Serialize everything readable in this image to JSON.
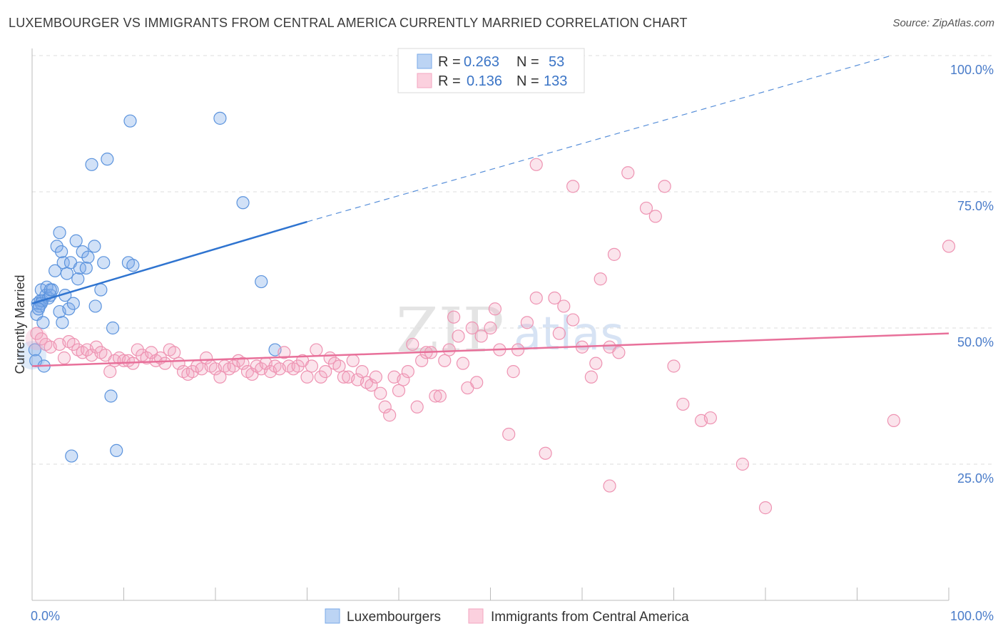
{
  "header": {
    "title": "LUXEMBOURGER VS IMMIGRANTS FROM CENTRAL AMERICA CURRENTLY MARRIED CORRELATION CHART",
    "source": "Source: ZipAtlas.com"
  },
  "watermark": {
    "zip": "ZIP",
    "atlas": "atlas"
  },
  "legend": {
    "rows": [
      {
        "r_label": "R =",
        "r_value": "0.263",
        "n_label": "N =",
        "n_value": "53"
      },
      {
        "r_label": "R =",
        "r_value": "0.136",
        "n_label": "N =",
        "n_value": "133"
      }
    ]
  },
  "bottom_legend": [
    "Luxembourgers",
    "Immigrants from Central America"
  ],
  "chart_data": {
    "type": "scatter",
    "title": "LUXEMBOURGER VS IMMIGRANTS FROM CENTRAL AMERICA CURRENTLY MARRIED CORRELATION CHART",
    "xlabel": "",
    "ylabel": "Currently Married",
    "xlim": [
      0,
      100
    ],
    "ylim": [
      0,
      100
    ],
    "x_tick_labels": [
      "0.0%",
      "100.0%"
    ],
    "y_ticks": [
      25,
      50,
      75,
      100
    ],
    "y_tick_labels": [
      "25.0%",
      "50.0%",
      "75.0%",
      "100.0%"
    ],
    "grid": "horizontal dashed",
    "legend_position": "top-center",
    "colors": {
      "series1": "#7aaae8",
      "series1_line": "#2f74d0",
      "series2": "#f3a6c0",
      "series2_line": "#e8709a"
    },
    "series": [
      {
        "name": "Luxembourgers",
        "trend": {
          "x0": 0,
          "y0": 54.5,
          "x1": 30,
          "y1": 69.5,
          "dashed_to": {
            "x": 100,
            "y": 103
          }
        },
        "points": [
          [
            0.3,
            46
          ],
          [
            0.4,
            44
          ],
          [
            0.5,
            52.5
          ],
          [
            0.6,
            54.5
          ],
          [
            0.8,
            54
          ],
          [
            0.9,
            55
          ],
          [
            1.0,
            57
          ],
          [
            1.1,
            55
          ],
          [
            1.2,
            51
          ],
          [
            1.3,
            43
          ],
          [
            1.5,
            56
          ],
          [
            1.6,
            57.5
          ],
          [
            1.8,
            55.5
          ],
          [
            2.0,
            56
          ],
          [
            2.2,
            57
          ],
          [
            2.5,
            60.5
          ],
          [
            2.7,
            65
          ],
          [
            3.0,
            67.5
          ],
          [
            3.0,
            53
          ],
          [
            3.2,
            64
          ],
          [
            3.4,
            62
          ],
          [
            3.6,
            56
          ],
          [
            3.8,
            60
          ],
          [
            4.0,
            53.5
          ],
          [
            4.2,
            62
          ],
          [
            4.5,
            54.5
          ],
          [
            4.8,
            66
          ],
          [
            5.0,
            59
          ],
          [
            5.2,
            61
          ],
          [
            5.5,
            64
          ],
          [
            5.9,
            61
          ],
          [
            6.1,
            63
          ],
          [
            6.5,
            80
          ],
          [
            6.8,
            65
          ],
          [
            6.9,
            54
          ],
          [
            7.5,
            57
          ],
          [
            7.8,
            62
          ],
          [
            8.2,
            81
          ],
          [
            8.6,
            37.5
          ],
          [
            8.8,
            50
          ],
          [
            9.2,
            27.5
          ],
          [
            10.5,
            62
          ],
          [
            10.7,
            88
          ],
          [
            11.0,
            61.5
          ],
          [
            20.5,
            88.5
          ],
          [
            23,
            73
          ],
          [
            25,
            58.5
          ],
          [
            26.5,
            46
          ],
          [
            3.3,
            51
          ],
          [
            2.0,
            57
          ],
          [
            1.0,
            54.5
          ],
          [
            0.7,
            53.5
          ],
          [
            4.3,
            26.5
          ]
        ]
      },
      {
        "name": "Immigrants from Central America",
        "trend": {
          "x0": 0,
          "y0": 43,
          "x1": 100,
          "y1": 49
        },
        "points": [
          [
            0.5,
            49
          ],
          [
            1,
            48
          ],
          [
            1.5,
            47
          ],
          [
            2,
            46.5
          ],
          [
            3,
            47
          ],
          [
            3.5,
            44.5
          ],
          [
            4,
            47.5
          ],
          [
            4.5,
            47
          ],
          [
            5,
            46
          ],
          [
            5.5,
            45.5
          ],
          [
            6,
            46
          ],
          [
            6.5,
            45
          ],
          [
            7,
            46.5
          ],
          [
            7.5,
            45.5
          ],
          [
            8,
            45
          ],
          [
            8.5,
            42
          ],
          [
            9,
            44
          ],
          [
            9.5,
            44.5
          ],
          [
            10,
            44
          ],
          [
            10.5,
            44
          ],
          [
            11,
            43.5
          ],
          [
            11.5,
            46
          ],
          [
            12,
            45
          ],
          [
            12.5,
            44.5
          ],
          [
            13,
            45.5
          ],
          [
            13.5,
            44
          ],
          [
            14,
            44.5
          ],
          [
            14.5,
            43.5
          ],
          [
            15,
            46
          ],
          [
            15.5,
            45.5
          ],
          [
            16,
            43.5
          ],
          [
            16.5,
            42
          ],
          [
            17,
            41.5
          ],
          [
            17.5,
            42
          ],
          [
            18,
            43
          ],
          [
            18.5,
            42.5
          ],
          [
            19,
            44.5
          ],
          [
            19.5,
            43
          ],
          [
            20,
            42.5
          ],
          [
            20.5,
            41
          ],
          [
            21,
            43
          ],
          [
            21.5,
            42.5
          ],
          [
            22,
            43
          ],
          [
            22.5,
            44
          ],
          [
            23,
            43.5
          ],
          [
            23.5,
            42
          ],
          [
            24,
            41.5
          ],
          [
            24.5,
            43
          ],
          [
            25,
            42.5
          ],
          [
            25.5,
            43.5
          ],
          [
            26,
            42
          ],
          [
            26.5,
            43
          ],
          [
            27,
            42.5
          ],
          [
            27.5,
            45.5
          ],
          [
            28,
            43
          ],
          [
            28.5,
            42.5
          ],
          [
            29,
            43
          ],
          [
            29.5,
            44
          ],
          [
            30,
            41
          ],
          [
            30.5,
            43
          ],
          [
            31,
            46
          ],
          [
            31.5,
            41
          ],
          [
            32,
            42
          ],
          [
            32.5,
            44.5
          ],
          [
            33,
            43.5
          ],
          [
            33.5,
            43
          ],
          [
            34,
            41
          ],
          [
            34.5,
            41
          ],
          [
            35,
            44
          ],
          [
            35.5,
            40.5
          ],
          [
            36,
            42
          ],
          [
            36.5,
            40
          ],
          [
            37,
            39.5
          ],
          [
            37.5,
            41
          ],
          [
            38,
            38
          ],
          [
            38.5,
            35.5
          ],
          [
            39,
            34
          ],
          [
            39.5,
            41
          ],
          [
            40,
            38.5
          ],
          [
            40.5,
            40.5
          ],
          [
            41,
            42
          ],
          [
            41.5,
            47
          ],
          [
            42,
            35.5
          ],
          [
            42.5,
            44
          ],
          [
            43,
            45.5
          ],
          [
            43.5,
            45.5
          ],
          [
            44,
            37.5
          ],
          [
            44.5,
            37.5
          ],
          [
            45,
            44
          ],
          [
            45.5,
            46
          ],
          [
            46,
            52
          ],
          [
            46.5,
            48.5
          ],
          [
            47,
            43.5
          ],
          [
            47.5,
            39
          ],
          [
            48,
            50
          ],
          [
            48.5,
            40
          ],
          [
            49,
            48.5
          ],
          [
            50,
            50
          ],
          [
            50.5,
            53.5
          ],
          [
            51,
            46
          ],
          [
            52,
            30.5
          ],
          [
            52.5,
            42
          ],
          [
            53,
            46
          ],
          [
            54,
            51
          ],
          [
            55,
            55.5
          ],
          [
            56,
            27
          ],
          [
            57,
            55.5
          ],
          [
            57.5,
            49
          ],
          [
            58,
            54
          ],
          [
            59,
            51.5
          ],
          [
            60,
            46.5
          ],
          [
            61,
            41
          ],
          [
            61.5,
            43.5
          ],
          [
            62,
            59
          ],
          [
            63,
            46.5
          ],
          [
            63.5,
            63.5
          ],
          [
            64,
            45.5
          ],
          [
            65,
            78.5
          ],
          [
            67,
            72
          ],
          [
            68,
            70.5
          ],
          [
            69,
            76
          ],
          [
            70,
            43
          ],
          [
            71,
            36
          ],
          [
            73,
            33
          ],
          [
            74,
            33.5
          ],
          [
            77.5,
            25
          ],
          [
            80,
            17
          ],
          [
            55,
            80
          ],
          [
            59,
            76
          ],
          [
            63,
            21
          ],
          [
            94,
            33
          ],
          [
            100,
            65
          ]
        ]
      }
    ]
  }
}
